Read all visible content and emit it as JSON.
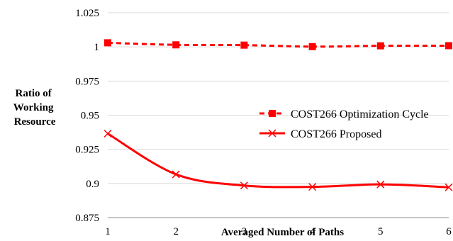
{
  "chart_data": {
    "type": "line",
    "xlabel": "Averaged Number of Paths",
    "ylabel_lines": [
      "Ratio of",
      "Working",
      "Resource"
    ],
    "x": [
      1,
      2,
      3,
      4,
      5,
      6
    ],
    "ylim": [
      0.875,
      1.025
    ],
    "yticks": [
      "0.875",
      "0.9",
      "0.925",
      "0.95",
      "0.975",
      "1",
      "1.025"
    ],
    "grid": true,
    "legend_position": "right",
    "series": [
      {
        "name": "COST266 Optimization Cycle",
        "values": [
          1.003,
          1.0015,
          1.0013,
          1.0002,
          1.0008,
          1.0009
        ],
        "color": "#ff0000",
        "style": "dashed",
        "marker": "square"
      },
      {
        "name": "COST266 Proposed",
        "values": [
          0.9365,
          0.9067,
          0.8985,
          0.8975,
          0.8993,
          0.8972
        ],
        "color": "#ff0000",
        "style": "solid",
        "marker": "x"
      }
    ]
  }
}
